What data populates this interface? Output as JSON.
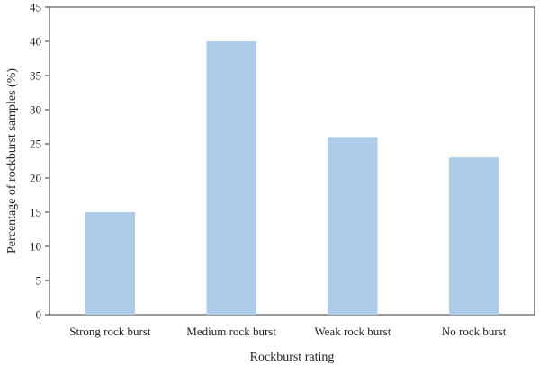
{
  "chart_data": {
    "type": "bar",
    "categories": [
      "Strong rock burst",
      "Medium rock burst",
      "Weak rock burst",
      "No rock burst"
    ],
    "values": [
      15,
      40,
      26,
      23
    ],
    "xlabel": "Rockburst rating",
    "ylabel": "Percentage of rockburst samples (%)",
    "ylim": [
      0,
      45
    ],
    "yticks": [
      0,
      5,
      10,
      15,
      20,
      25,
      30,
      35,
      40,
      45
    ],
    "grid": false,
    "legend": "none",
    "bar_color": "#aecbea",
    "axis_color": "#333333"
  }
}
